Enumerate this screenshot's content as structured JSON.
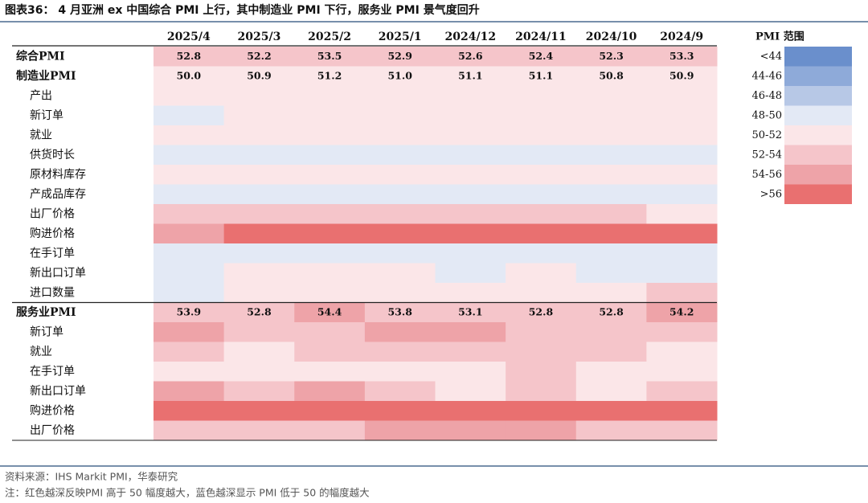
{
  "header": {
    "title": "图表36：  4 月亚洲 ex 中国综合 PMI 上行，其中制造业 PMI 下行，服务业 PMI 景气度回升"
  },
  "legend": {
    "title": "PMI 范围",
    "ranges": [
      "<44",
      "44-46",
      "46-48",
      "48-50",
      "50-52",
      "52-54",
      "54-56",
      ">56"
    ],
    "colors": [
      "#6a8fcc",
      "#8eaad9",
      "#b7c8e6",
      "#e3e9f5",
      "#fbe6e8",
      "#f5c5ca",
      "#eea3a8",
      "#e97070"
    ]
  },
  "table": {
    "columns": [
      "2025/4",
      "2025/3",
      "2025/2",
      "2025/1",
      "2024/12",
      "2024/11",
      "2024/10",
      "2024/9"
    ],
    "rows": [
      {
        "label": "综合PMI",
        "values": [
          "52.8",
          "52.2",
          "53.5",
          "52.9",
          "52.6",
          "52.4",
          "52.3",
          "53.3"
        ],
        "levels": [
          5,
          5,
          5,
          5,
          5,
          5,
          5,
          5
        ]
      },
      {
        "label": "制造业PMI",
        "values": [
          "50.0",
          "50.9",
          "51.2",
          "51.0",
          "51.1",
          "51.1",
          "50.8",
          "50.9"
        ],
        "levels": [
          4,
          4,
          4,
          4,
          4,
          4,
          4,
          4
        ]
      },
      {
        "label": "产出",
        "levels": [
          4,
          4,
          4,
          4,
          4,
          4,
          4,
          4
        ]
      },
      {
        "label": "新订单",
        "levels": [
          3,
          4,
          4,
          4,
          4,
          4,
          4,
          4
        ]
      },
      {
        "label": "就业",
        "levels": [
          4,
          4,
          4,
          4,
          4,
          4,
          4,
          4
        ]
      },
      {
        "label": "供货时长",
        "levels": [
          3,
          3,
          3,
          3,
          3,
          3,
          3,
          3
        ]
      },
      {
        "label": "原材料库存",
        "levels": [
          4,
          4,
          4,
          4,
          4,
          4,
          4,
          4
        ]
      },
      {
        "label": "产成品库存",
        "levels": [
          3,
          3,
          3,
          3,
          3,
          3,
          3,
          3
        ]
      },
      {
        "label": "出厂价格",
        "levels": [
          5,
          5,
          5,
          5,
          5,
          5,
          5,
          4
        ]
      },
      {
        "label": "购进价格",
        "levels": [
          6,
          7,
          7,
          7,
          7,
          7,
          7,
          7
        ]
      },
      {
        "label": "在手订单",
        "levels": [
          3,
          3,
          3,
          3,
          3,
          3,
          3,
          3
        ]
      },
      {
        "label": "新出口订单",
        "levels": [
          3,
          4,
          4,
          4,
          3,
          4,
          3,
          3
        ]
      },
      {
        "label": "进口数量",
        "levels": [
          3,
          4,
          4,
          4,
          4,
          4,
          4,
          5
        ]
      },
      {
        "label": "服务业PMI",
        "values": [
          "53.9",
          "52.8",
          "54.4",
          "53.8",
          "53.1",
          "52.8",
          "52.8",
          "54.2"
        ],
        "levels": [
          5,
          5,
          6,
          5,
          5,
          5,
          5,
          6
        ]
      },
      {
        "label": "新订单",
        "levels": [
          6,
          5,
          5,
          6,
          6,
          5,
          5,
          5
        ]
      },
      {
        "label": "就业",
        "levels": [
          5,
          4,
          5,
          5,
          5,
          5,
          5,
          4
        ]
      },
      {
        "label": "在手订单",
        "levels": [
          4,
          4,
          4,
          4,
          4,
          5,
          4,
          4
        ]
      },
      {
        "label": "新出口订单",
        "levels": [
          6,
          5,
          6,
          5,
          4,
          5,
          4,
          5
        ]
      },
      {
        "label": "购进价格",
        "levels": [
          7,
          7,
          7,
          7,
          7,
          7,
          7,
          7
        ]
      },
      {
        "label": "出厂价格",
        "levels": [
          5,
          5,
          5,
          6,
          6,
          6,
          5,
          5
        ]
      }
    ]
  },
  "footer": {
    "source": "资料来源：IHS Markit PMI，华泰研究",
    "note": "注：红色越深反映PMI 高于 50 幅度越大，蓝色越深显示 PMI 低于 50 的幅度越大"
  }
}
